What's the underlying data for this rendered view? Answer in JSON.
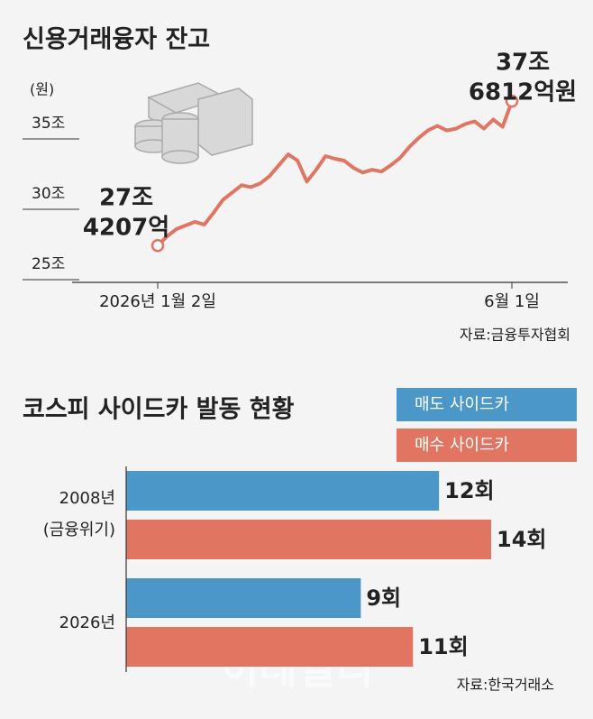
{
  "chart_data": [
    {
      "type": "line",
      "title": "신용거래융자 잔고",
      "unit_label": "(원)",
      "categories": [
        "2026년 1월 2일",
        null,
        null,
        null,
        null,
        null,
        null,
        null,
        null,
        null,
        null,
        null,
        null,
        null,
        null,
        null,
        null,
        null,
        null,
        null,
        null,
        null,
        null,
        null,
        null,
        null,
        null,
        null,
        null,
        null,
        null,
        null,
        null,
        null,
        null,
        null,
        null,
        null,
        "6월 1일"
      ],
      "series": [
        {
          "color": "#e07562",
          "values": [
            27.42,
            28.07,
            28.59,
            28.85,
            29.11,
            28.91,
            29.76,
            30.67,
            31.19,
            31.71,
            31.58,
            31.84,
            32.36,
            33.13,
            33.91,
            33.46,
            31.97,
            32.81,
            33.78,
            33.59,
            33.46,
            32.94,
            32.61,
            32.81,
            32.68,
            33.13,
            33.65,
            34.43,
            35.08,
            35.6,
            35.93,
            35.6,
            35.73,
            36.06,
            36.25,
            35.73,
            36.38,
            35.86,
            37.6812
          ]
        }
      ],
      "ylim": [
        25,
        35
      ],
      "yticks": [
        {
          "value": 25,
          "label": "25조"
        },
        {
          "value": 30,
          "label": "30조"
        },
        {
          "value": 35,
          "label": "35조"
        }
      ],
      "start_label": [
        "27조",
        "4207억"
      ],
      "end_label": [
        "37조",
        "6812억원"
      ],
      "source": "자료:금융투자협회"
    },
    {
      "type": "hbar",
      "title": "코스피 사이드카 발동 현황",
      "categories": [
        [
          "2008년",
          "(금융위기)"
        ],
        [
          "2026년"
        ]
      ],
      "series": [
        {
          "name": "매도 사이드카",
          "color": "#4a97c8",
          "values": [
            12,
            9
          ],
          "value_labels": [
            "12회",
            "9회"
          ]
        },
        {
          "name": "매수 사이드카",
          "color": "#e07562",
          "values": [
            14,
            11
          ],
          "value_labels": [
            "14회",
            "11회"
          ]
        }
      ],
      "xlim": [
        0,
        14
      ],
      "source": "자료:한국거래소",
      "watermark": "이데일리"
    }
  ]
}
